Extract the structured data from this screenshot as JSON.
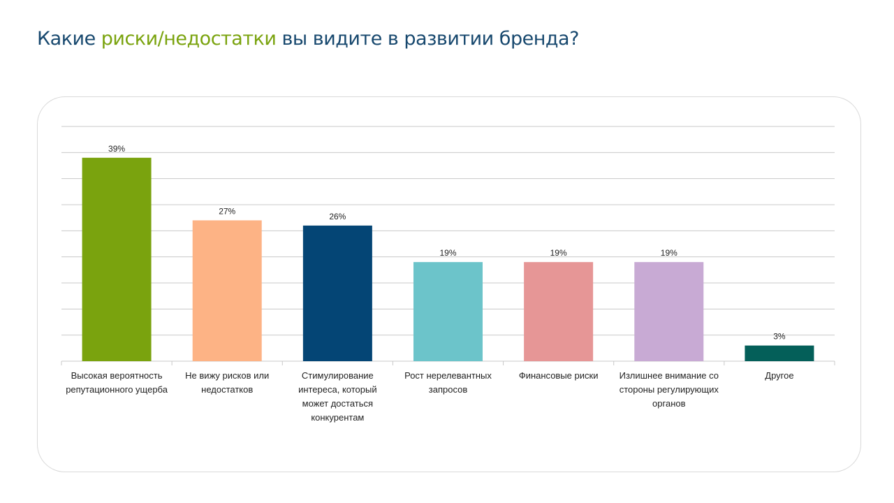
{
  "title": {
    "part1": "Какие ",
    "highlight": "риски/недостатки",
    "part2": " вы видите в развитии бренда?",
    "color": "#17486e",
    "highlight_color": "#7aa30e"
  },
  "chart_data": {
    "type": "bar",
    "categories": [
      "Высокая вероятность репутационного ущерба",
      "Не вижу рисков или недостатков",
      "Стимулирование интереса, который может достаться конкурентам",
      "Рост нерелевантных запросов",
      "Финансовые риски",
      "Излишнее внимание со стороны регулирующих органов",
      "Другое"
    ],
    "values": [
      39,
      27,
      26,
      19,
      19,
      19,
      3
    ],
    "data_labels": [
      "39%",
      "27%",
      "26%",
      "19%",
      "19%",
      "19%",
      "3%"
    ],
    "colors": [
      "#7aa30e",
      "#fdb385",
      "#044575",
      "#6cc4ca",
      "#e69696",
      "#c8aad4",
      "#045f59"
    ],
    "ylim": [
      0,
      45
    ],
    "y_step": 5,
    "grid": true,
    "y_axis_labels_shown": false,
    "legend": "none"
  }
}
